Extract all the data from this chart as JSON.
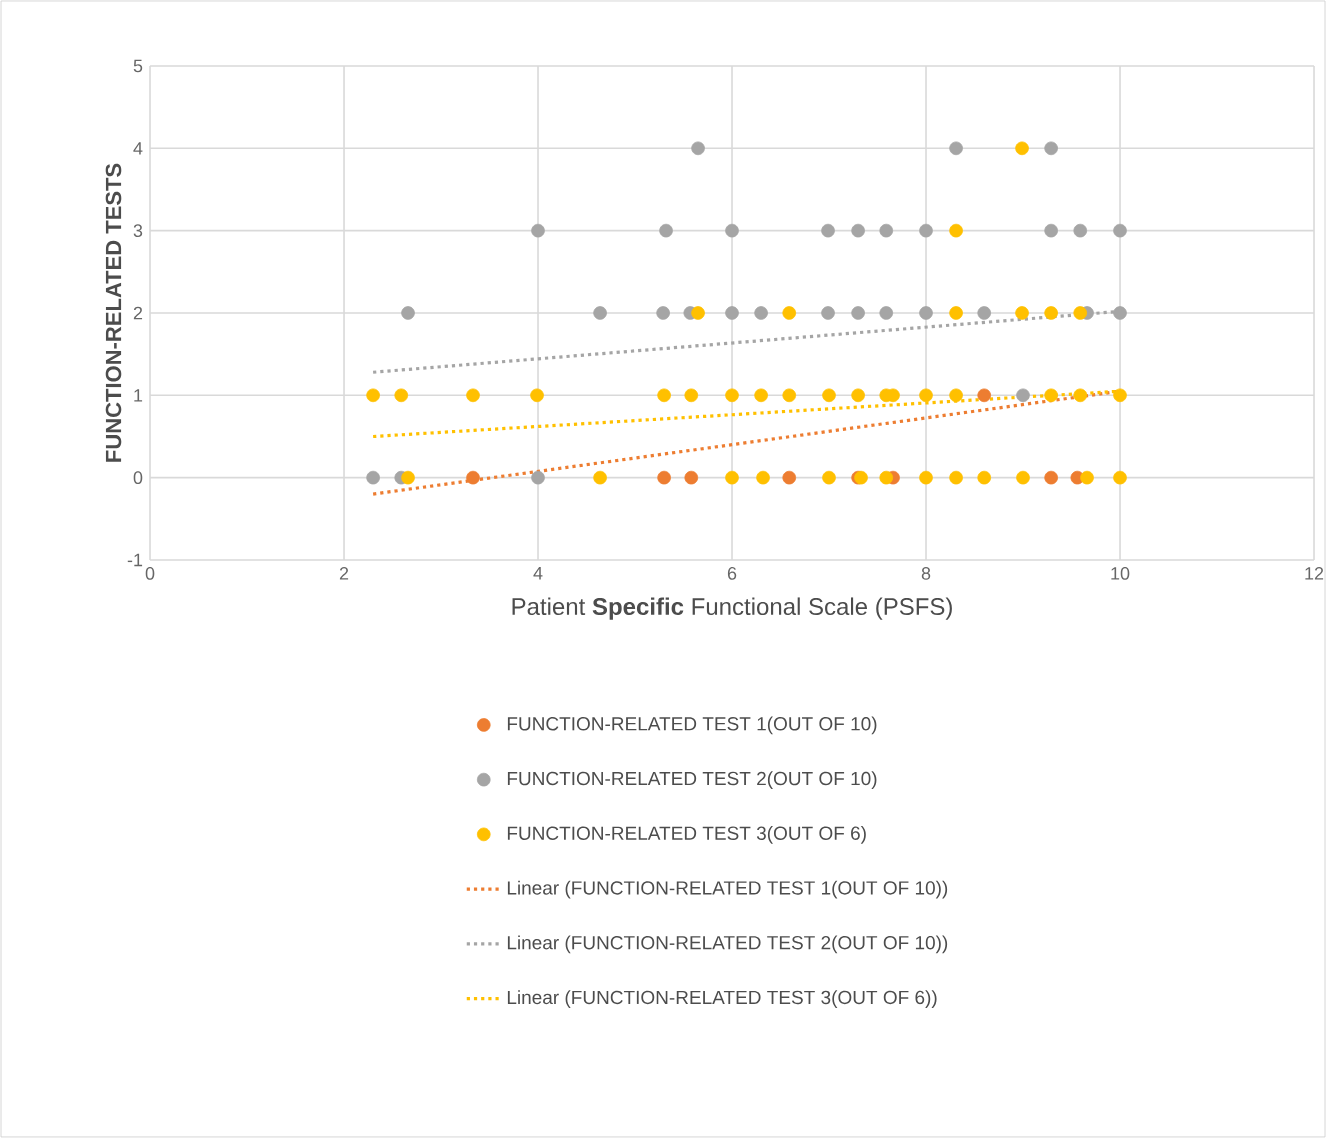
{
  "chart_data": {
    "type": "scatter",
    "xlabel": "Patient **Specific** Functional Scale (PSFS)",
    "ylabel": "FUNCTION-RELATED TESTS",
    "xlim": [
      0,
      12
    ],
    "ylim": [
      -1,
      5
    ],
    "xticks": [
      0,
      2,
      4,
      6,
      8,
      10,
      12
    ],
    "yticks": [
      -1,
      0,
      1,
      2,
      3,
      4,
      5
    ],
    "grid": true,
    "legend": "bottom",
    "marker": "circle",
    "series": [
      {
        "name": "FUNCTION-RELATED TEST 1(OUT OF 10)",
        "color": "#ed7d31",
        "x": [
          3.33,
          5.3,
          5.58,
          6.59,
          7.3,
          7.66,
          9.29,
          9.56,
          8.6
        ],
        "values": [
          0,
          0,
          0,
          0,
          0,
          0,
          0,
          0,
          1
        ]
      },
      {
        "name": "FUNCTION-RELATED TEST 2(OUT OF 10)",
        "color": "#a5a5a5",
        "x": [
          2.3,
          2.59,
          4.0,
          9.0,
          2.66,
          4.64,
          5.29,
          5.57,
          6.0,
          6.3,
          6.99,
          7.3,
          7.59,
          8.0,
          8.6,
          9.66,
          10,
          4.0,
          5.32,
          6.0,
          6.99,
          7.3,
          7.59,
          8.0,
          9.29,
          9.59,
          10,
          5.65,
          8.31,
          9.29
        ],
        "values": [
          0,
          0,
          0,
          1,
          2,
          2,
          2,
          2,
          2,
          2,
          2,
          2,
          2,
          2,
          2,
          2,
          2,
          3,
          3,
          3,
          3,
          3,
          3,
          3,
          3,
          3,
          3,
          4,
          4,
          4
        ]
      },
      {
        "name": "FUNCTION-RELATED TEST 3(OUT OF 6)",
        "color": "#ffc000",
        "x": [
          2.66,
          4.64,
          6.0,
          6.32,
          7.0,
          7.33,
          7.59,
          8.0,
          8.31,
          8.6,
          9.0,
          9.66,
          10,
          2.3,
          2.59,
          3.33,
          3.99,
          5.3,
          5.58,
          6.0,
          6.3,
          6.59,
          7.0,
          7.3,
          7.59,
          7.66,
          8.0,
          8.31,
          9.29,
          9.59,
          10,
          5.65,
          6.59,
          8.31,
          8.99,
          9.29,
          9.59,
          8.31,
          8.99
        ],
        "values": [
          0,
          0,
          0,
          0,
          0,
          0,
          0,
          0,
          0,
          0,
          0,
          0,
          0,
          1,
          1,
          1,
          1,
          1,
          1,
          1,
          1,
          1,
          1,
          1,
          1,
          1,
          1,
          1,
          1,
          1,
          1,
          2,
          2,
          2,
          2,
          2,
          2,
          3,
          4
        ]
      },
      {
        "name": "Linear (FUNCTION-RELATED TEST 1(OUT OF 10))",
        "type": "line",
        "line_style": "dotted",
        "marker": "none",
        "color": "#ed7d31",
        "x": [
          2.3,
          10
        ],
        "values": [
          -0.2,
          1.05
        ]
      },
      {
        "name": "Linear (FUNCTION-RELATED TEST 2(OUT OF 10))",
        "type": "line",
        "line_style": "dotted",
        "marker": "none",
        "color": "#a5a5a5",
        "x": [
          2.3,
          10
        ],
        "values": [
          1.28,
          2.02
        ]
      },
      {
        "name": "Linear (FUNCTION-RELATED TEST 3(OUT OF 6))",
        "type": "line",
        "line_style": "dotted",
        "marker": "none",
        "color": "#ffc000",
        "x": [
          2.3,
          10
        ],
        "values": [
          0.5,
          1.05
        ]
      }
    ]
  }
}
